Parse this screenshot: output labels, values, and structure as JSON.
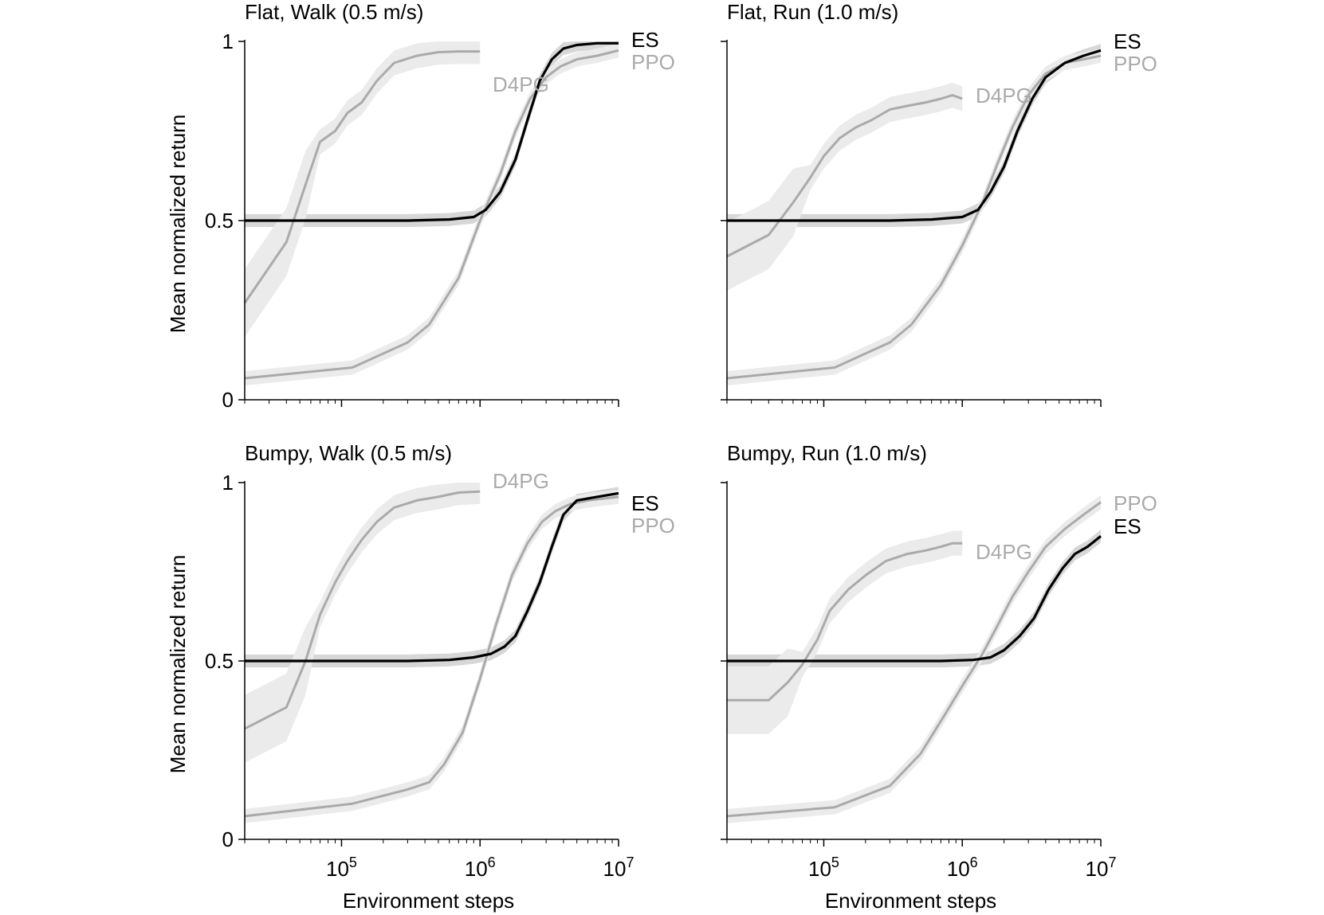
{
  "colors": {
    "es": "#000000",
    "ppo": "#aaaaaa",
    "d4pg": "#aaaaaa",
    "band_light": "#ebebeb",
    "band_dark": "#bcbcbc",
    "axis": "#000000"
  },
  "axes": {
    "ylabel": "Mean normalized return",
    "xlabel": "Environment steps",
    "ytick_labels": [
      "0",
      "0.5",
      "1"
    ],
    "xtick_labels": [
      {
        "base": "10",
        "exp": "5"
      },
      {
        "base": "10",
        "exp": "6"
      },
      {
        "base": "10",
        "exp": "7"
      }
    ]
  },
  "chart_data": [
    {
      "type": "line",
      "title": "Flat, Walk (0.5 m/s)",
      "x_scale": "log",
      "xlim": [
        20000,
        10000000
      ],
      "ylim": [
        0,
        1
      ],
      "series": [
        {
          "name": "ES",
          "color": "#000000",
          "x": [
            20000,
            100000,
            300000,
            600000,
            900000,
            1100000,
            1400000,
            1800000,
            2200000,
            2700000,
            3300000,
            4000000,
            5000000,
            7000000,
            10000000
          ],
          "y": [
            0.5,
            0.5,
            0.5,
            0.503,
            0.51,
            0.53,
            0.58,
            0.67,
            0.78,
            0.89,
            0.95,
            0.98,
            0.99,
            0.995,
            0.995
          ]
        },
        {
          "name": "PPO",
          "color": "#aaaaaa",
          "x": [
            20000,
            120000,
            300000,
            430000,
            700000,
            1000000,
            1400000,
            1800000,
            2300000,
            3000000,
            3800000,
            5000000,
            7000000,
            10000000
          ],
          "y": [
            0.06,
            0.09,
            0.16,
            0.21,
            0.34,
            0.5,
            0.63,
            0.75,
            0.84,
            0.9,
            0.93,
            0.95,
            0.96,
            0.975
          ]
        },
        {
          "name": "D4PG",
          "color": "#aaaaaa",
          "x": [
            20000,
            40000,
            55000,
            70000,
            90000,
            110000,
            140000,
            180000,
            240000,
            350000,
            500000,
            700000,
            1000000
          ],
          "y": [
            0.27,
            0.44,
            0.6,
            0.72,
            0.75,
            0.8,
            0.83,
            0.89,
            0.94,
            0.96,
            0.97,
            0.972,
            0.972
          ]
        }
      ],
      "series_labels": [
        "ES",
        "PPO",
        "D4PG"
      ]
    },
    {
      "type": "line",
      "title": "Flat, Run (1.0 m/s)",
      "x_scale": "log",
      "xlim": [
        20000,
        10000000
      ],
      "ylim": [
        0,
        1
      ],
      "series": [
        {
          "name": "ES",
          "color": "#000000",
          "x": [
            20000,
            100000,
            300000,
            600000,
            1000000,
            1300000,
            1600000,
            2000000,
            2500000,
            3200000,
            4000000,
            5500000,
            7500000,
            10000000
          ],
          "y": [
            0.5,
            0.5,
            0.5,
            0.503,
            0.51,
            0.53,
            0.58,
            0.65,
            0.75,
            0.84,
            0.9,
            0.94,
            0.96,
            0.975
          ]
        },
        {
          "name": "PPO",
          "color": "#aaaaaa",
          "x": [
            20000,
            120000,
            300000,
            430000,
            700000,
            1000000,
            1400000,
            1800000,
            2300000,
            3000000,
            4000000,
            5500000,
            7500000,
            10000000
          ],
          "y": [
            0.06,
            0.09,
            0.16,
            0.21,
            0.32,
            0.43,
            0.55,
            0.66,
            0.76,
            0.85,
            0.91,
            0.94,
            0.95,
            0.96
          ]
        },
        {
          "name": "D4PG",
          "color": "#aaaaaa",
          "x": [
            20000,
            40000,
            60000,
            80000,
            100000,
            130000,
            170000,
            220000,
            300000,
            400000,
            550000,
            700000,
            850000,
            1000000
          ],
          "y": [
            0.4,
            0.46,
            0.55,
            0.62,
            0.68,
            0.73,
            0.76,
            0.78,
            0.81,
            0.82,
            0.83,
            0.84,
            0.85,
            0.84
          ]
        }
      ],
      "series_labels": [
        "ES",
        "PPO",
        "D4PG"
      ]
    },
    {
      "type": "line",
      "title": "Bumpy, Walk (0.5 m/s)",
      "x_scale": "log",
      "xlim": [
        20000,
        10000000
      ],
      "ylim": [
        0,
        1
      ],
      "series": [
        {
          "name": "ES",
          "color": "#000000",
          "x": [
            20000,
            100000,
            300000,
            600000,
            900000,
            1200000,
            1500000,
            1800000,
            2200000,
            2700000,
            3300000,
            4000000,
            5000000,
            7000000,
            10000000
          ],
          "y": [
            0.5,
            0.5,
            0.5,
            0.503,
            0.51,
            0.52,
            0.54,
            0.57,
            0.64,
            0.72,
            0.82,
            0.91,
            0.95,
            0.96,
            0.97
          ]
        },
        {
          "name": "PPO",
          "color": "#aaaaaa",
          "x": [
            20000,
            120000,
            300000,
            430000,
            550000,
            750000,
            1000000,
            1300000,
            1700000,
            2200000,
            2800000,
            3500000,
            4500000,
            6000000,
            10000000
          ],
          "y": [
            0.065,
            0.1,
            0.14,
            0.16,
            0.21,
            0.3,
            0.45,
            0.6,
            0.74,
            0.83,
            0.89,
            0.92,
            0.94,
            0.95,
            0.96
          ]
        },
        {
          "name": "D4PG",
          "color": "#aaaaaa",
          "x": [
            20000,
            40000,
            55000,
            70000,
            90000,
            110000,
            140000,
            180000,
            240000,
            350000,
            500000,
            700000,
            1000000
          ],
          "y": [
            0.31,
            0.37,
            0.5,
            0.63,
            0.72,
            0.78,
            0.84,
            0.89,
            0.93,
            0.95,
            0.96,
            0.972,
            0.975
          ]
        }
      ],
      "series_labels": [
        "ES",
        "PPO",
        "D4PG"
      ]
    },
    {
      "type": "line",
      "title": "Bumpy, Run (1.0 m/s)",
      "x_scale": "log",
      "xlim": [
        20000,
        10000000
      ],
      "ylim": [
        0,
        1
      ],
      "series": [
        {
          "name": "ES",
          "color": "#000000",
          "x": [
            20000,
            100000,
            300000,
            700000,
            1200000,
            1600000,
            2000000,
            2600000,
            3300000,
            4200000,
            5300000,
            6500000,
            8000000,
            10000000
          ],
          "y": [
            0.5,
            0.5,
            0.5,
            0.5,
            0.503,
            0.51,
            0.53,
            0.57,
            0.62,
            0.7,
            0.76,
            0.8,
            0.82,
            0.85
          ]
        },
        {
          "name": "PPO",
          "color": "#aaaaaa",
          "x": [
            20000,
            120000,
            300000,
            500000,
            750000,
            1000000,
            1400000,
            1800000,
            2300000,
            3000000,
            4000000,
            5500000,
            7500000,
            10000000
          ],
          "y": [
            0.065,
            0.09,
            0.15,
            0.24,
            0.35,
            0.43,
            0.52,
            0.6,
            0.68,
            0.75,
            0.82,
            0.87,
            0.91,
            0.945
          ]
        },
        {
          "name": "D4PG",
          "color": "#aaaaaa",
          "x": [
            20000,
            40000,
            55000,
            70000,
            90000,
            110000,
            150000,
            200000,
            280000,
            400000,
            550000,
            700000,
            850000,
            1000000
          ],
          "y": [
            0.39,
            0.39,
            0.44,
            0.49,
            0.56,
            0.64,
            0.7,
            0.74,
            0.78,
            0.8,
            0.81,
            0.82,
            0.83,
            0.83
          ]
        }
      ],
      "series_labels": [
        "PPO",
        "ES",
        "D4PG"
      ]
    }
  ]
}
